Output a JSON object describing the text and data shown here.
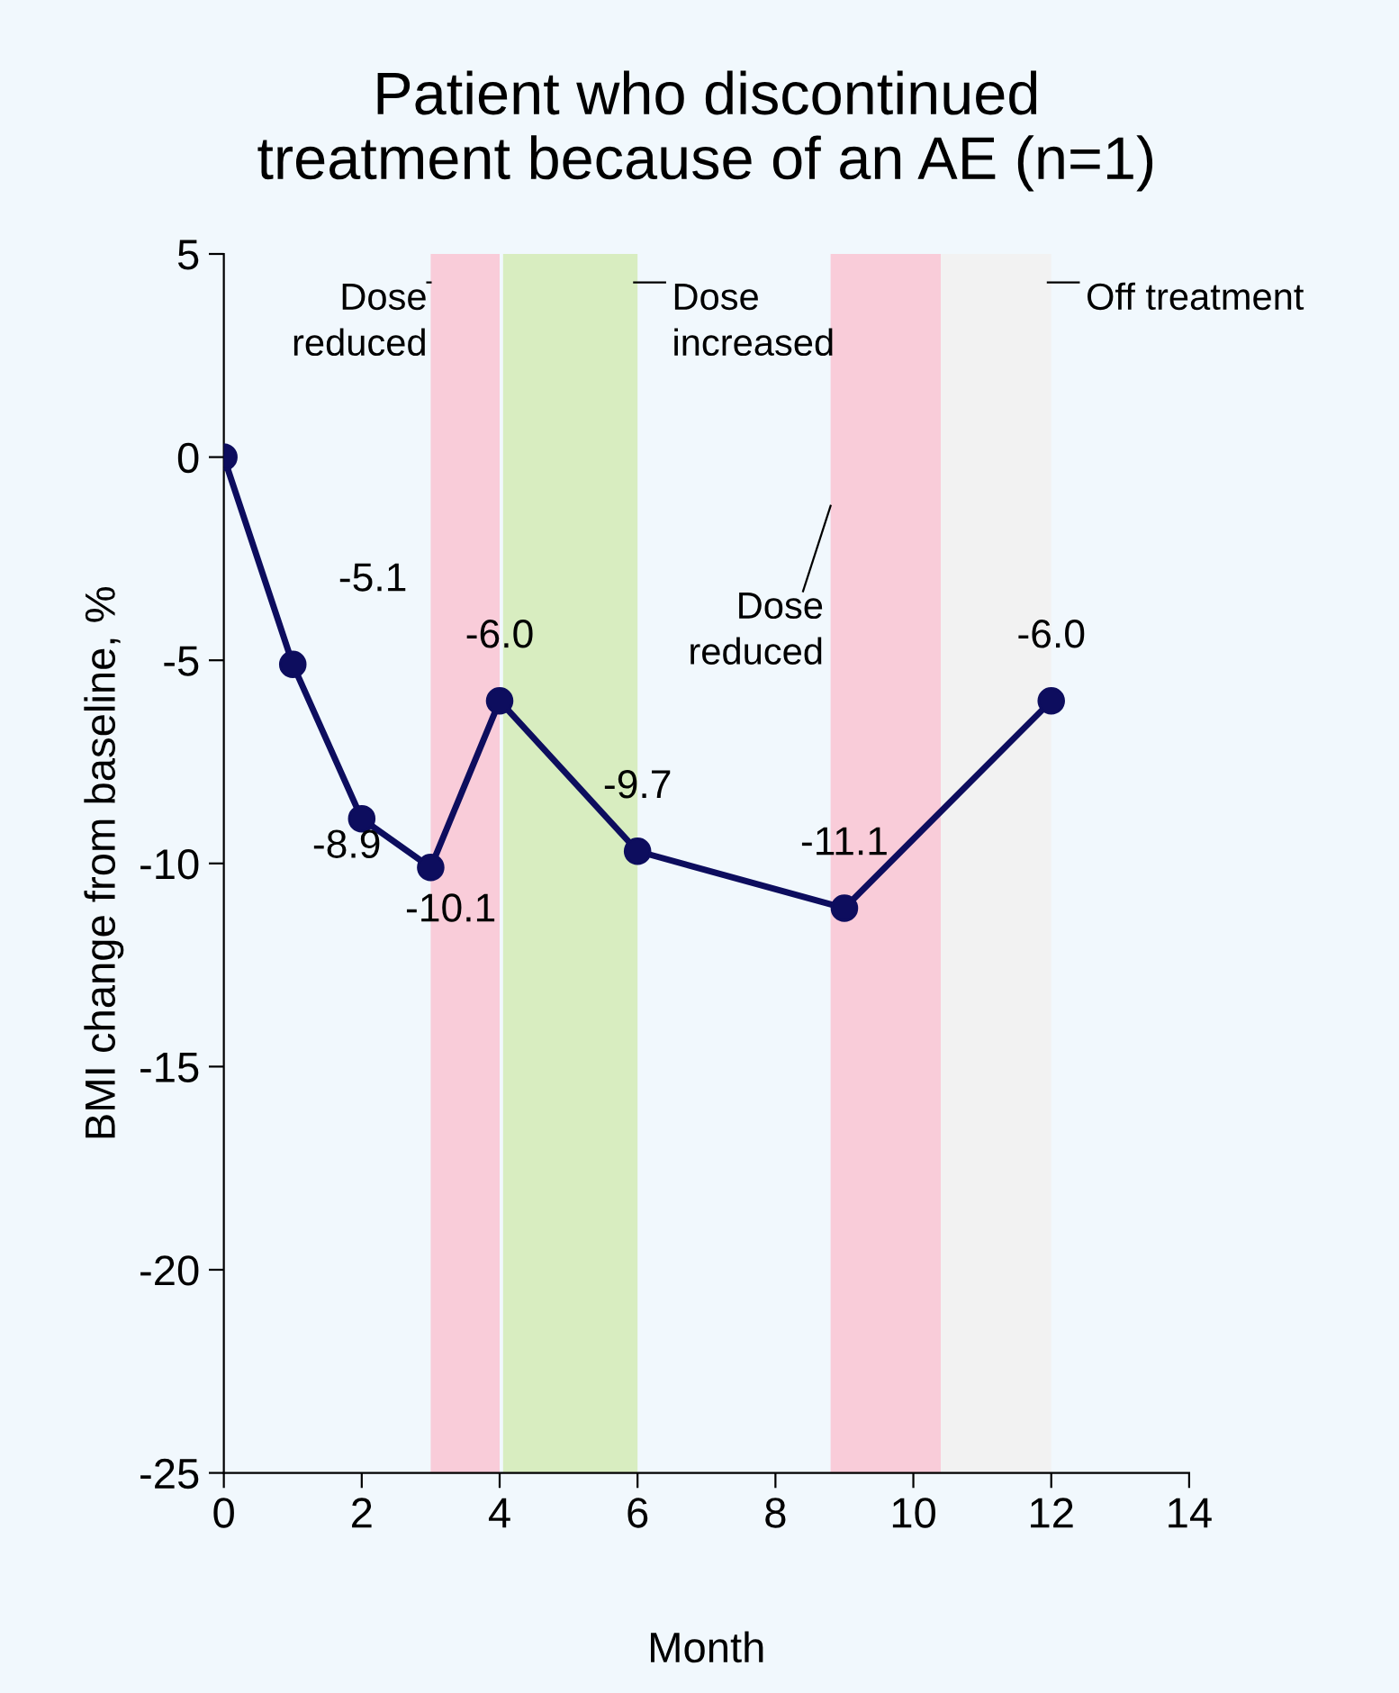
{
  "chart_data": {
    "type": "line",
    "title": "Patient who discontinued\ntreatment because of an AE (n=1)",
    "xlabel": "Month",
    "ylabel": "BMI change from baseline, %",
    "x": [
      0,
      1,
      2,
      3,
      4,
      6,
      9,
      12
    ],
    "series": [
      {
        "color": "#0d0d5e",
        "values": [
          0,
          -5.1,
          -8.9,
          -10.1,
          -6.0,
          -9.7,
          -11.1,
          -6.0
        ],
        "value_labels": [
          null,
          "-5.1",
          "-8.9",
          "-10.1",
          "-6.0",
          "-9.7",
          "-11.1",
          "-6.0"
        ]
      }
    ],
    "marker": "circle",
    "line_style": "solid",
    "grid": false,
    "legend": false,
    "xlim": [
      0,
      14
    ],
    "xticks": [
      0,
      2,
      4,
      6,
      8,
      10,
      12,
      14
    ],
    "ylim": [
      -25,
      5
    ],
    "yticks": [
      -25,
      -20,
      -15,
      -10,
      -5,
      0,
      5
    ],
    "bands": [
      {
        "axis": "x",
        "from": 3,
        "to": 4,
        "label": "Dose\nreduced",
        "color": "#f9ccd9"
      },
      {
        "axis": "x",
        "from": 4.05,
        "to": 6,
        "label": "Dose\nincreased",
        "color": "#d8edc0"
      },
      {
        "axis": "x",
        "from": 8.8,
        "to": 10.4,
        "label": "Dose\nreduced",
        "color": "#f9ccd9"
      },
      {
        "axis": "x",
        "from": 10.4,
        "to": 12,
        "label": "Off treatment",
        "color": "#f2f2f2"
      }
    ]
  }
}
